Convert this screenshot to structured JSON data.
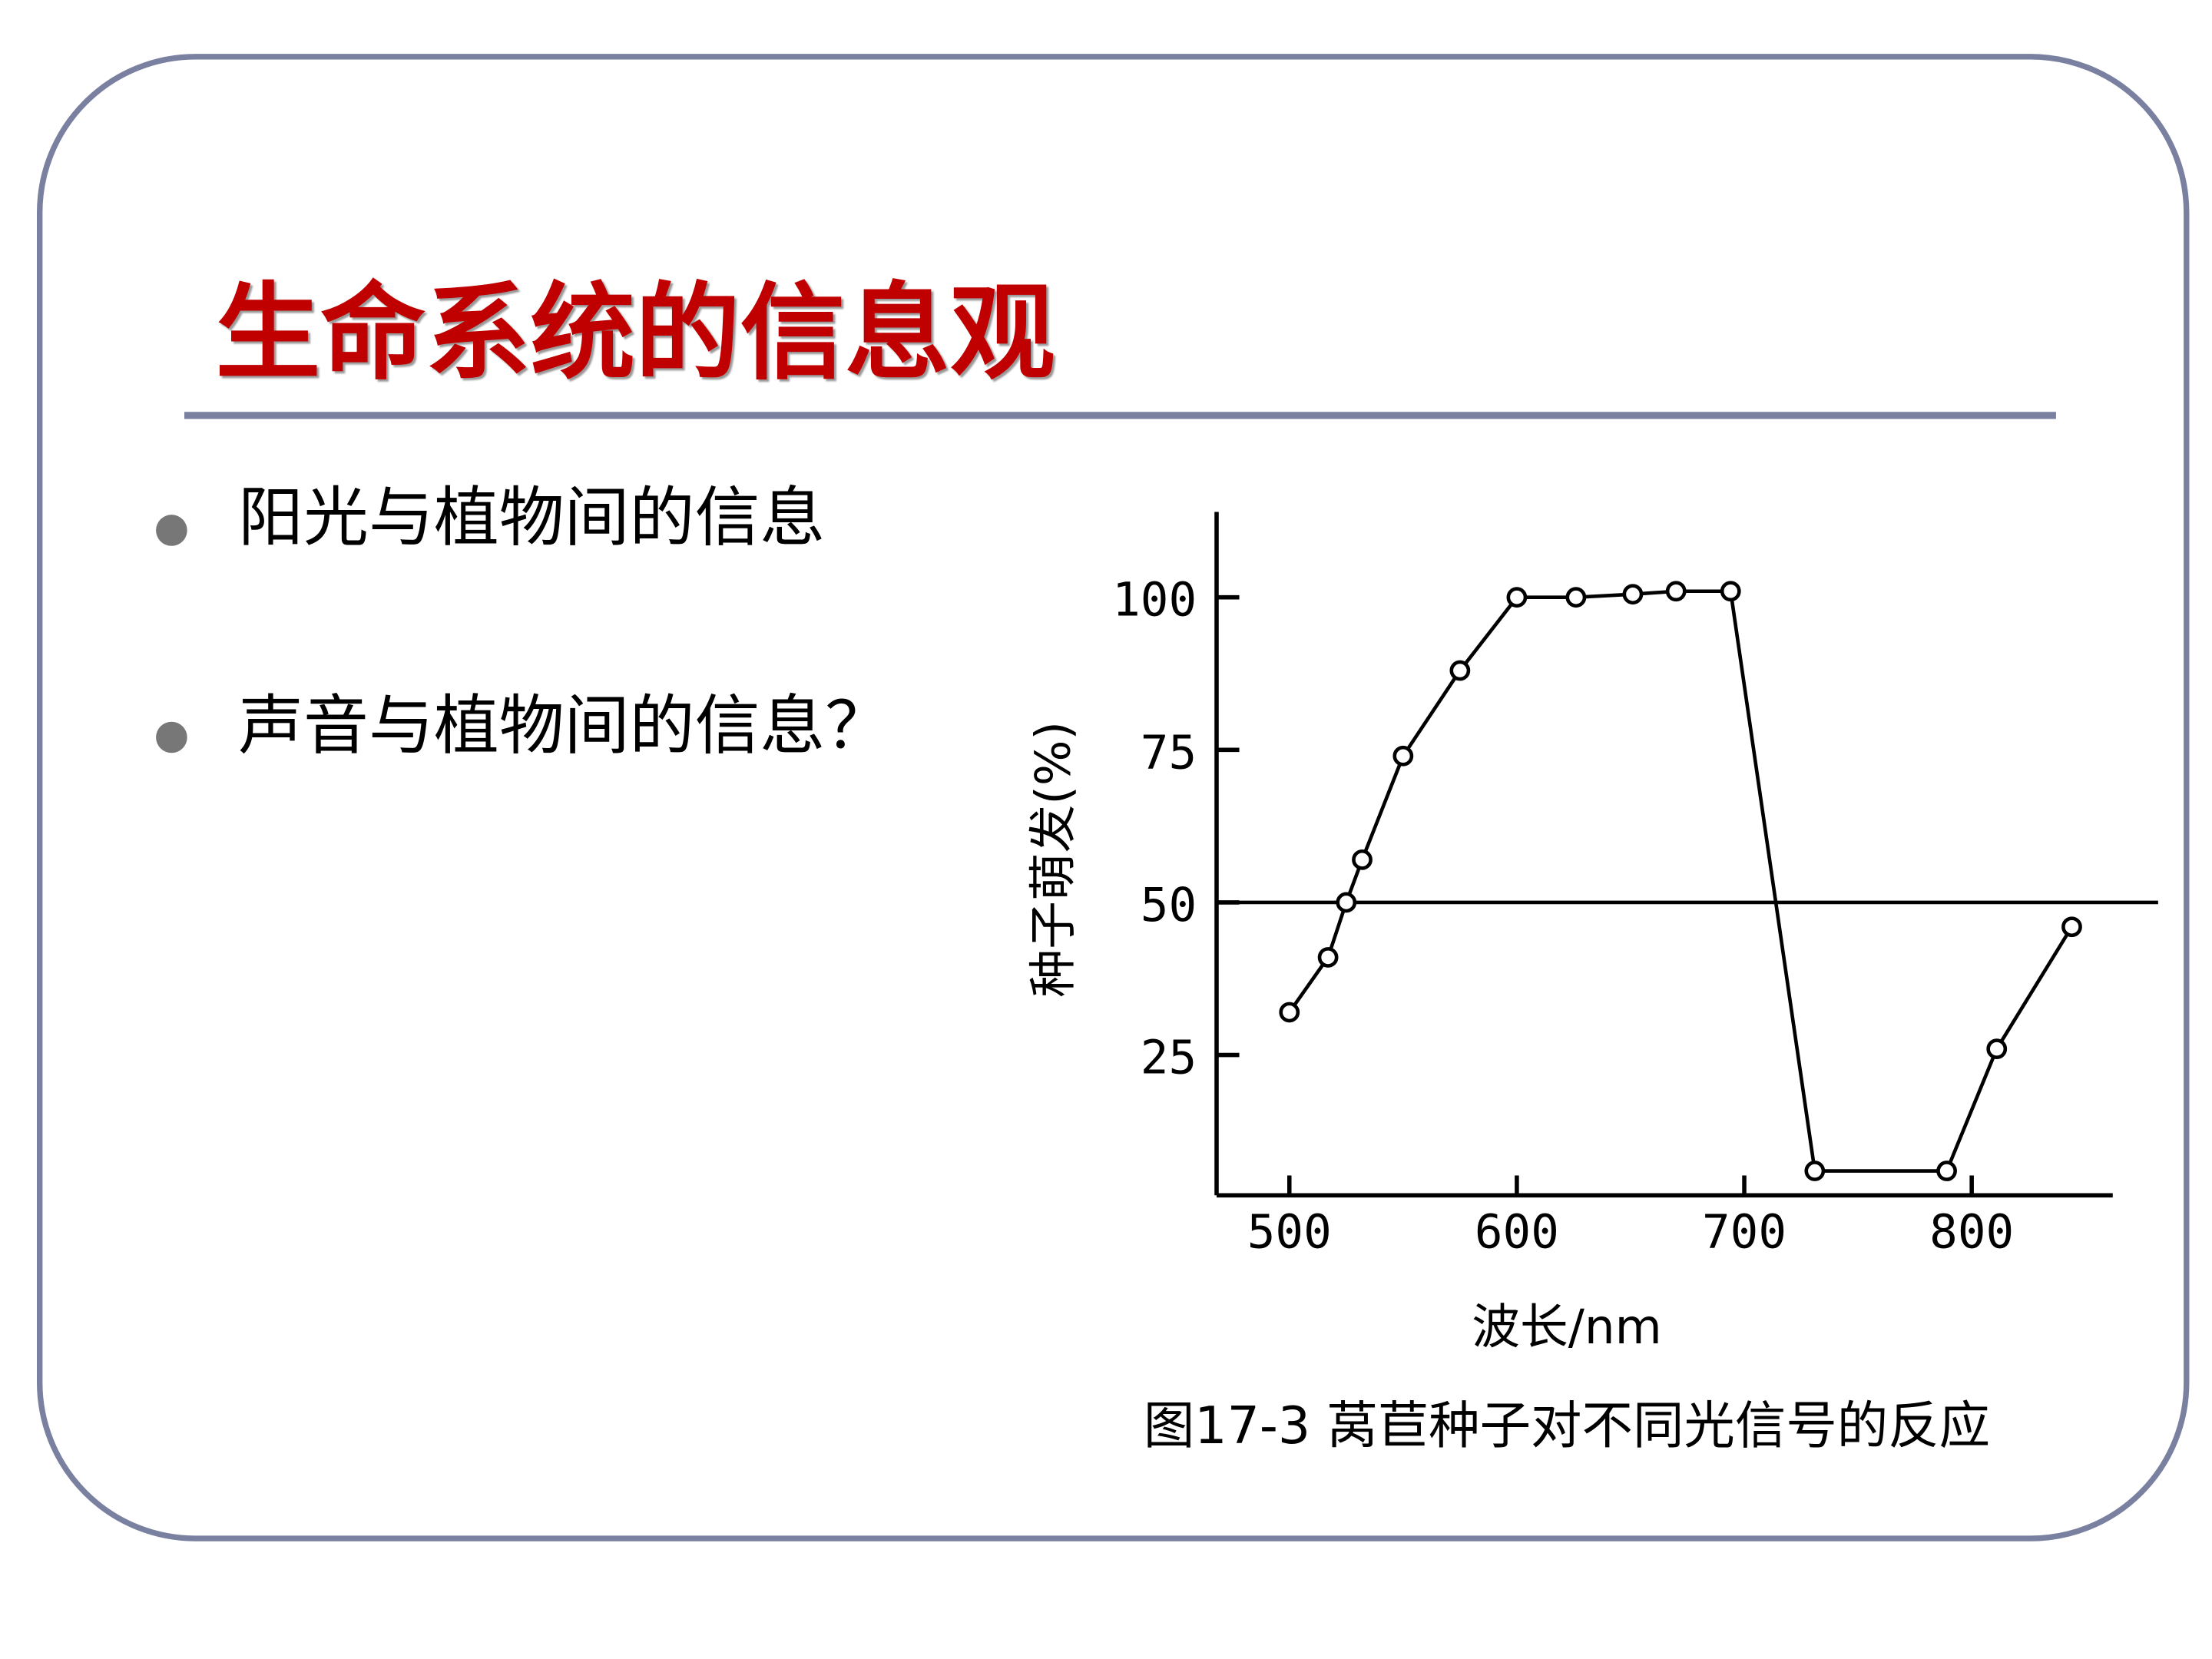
{
  "title": "生命系统的信息观",
  "bullets": [
    "阳光与植物间的信息",
    "声音与植物间的信息？"
  ],
  "chart_data": {
    "type": "line",
    "x": [
      500,
      517,
      525,
      532,
      550,
      575,
      600,
      626,
      651,
      670,
      694,
      731,
      789,
      811,
      844
    ],
    "series": [
      {
        "values": [
          32,
          41,
          50,
          57,
          74,
          88,
          100,
          100,
          100.5,
          101,
          101,
          6,
          6,
          26,
          46
        ],
        "color": "#000000"
      }
    ],
    "xlim": [
      468,
      862
    ],
    "xticks": [
      500,
      600,
      700,
      800
    ],
    "ylim": [
      2,
      114
    ],
    "yticks": [
      25,
      50,
      75,
      100
    ],
    "reference_line": 50,
    "ylabel": "种子萌发(%)",
    "xlabel": "波长/nm",
    "caption": "图17-3 莴苣种子对不同光信号的反应"
  }
}
